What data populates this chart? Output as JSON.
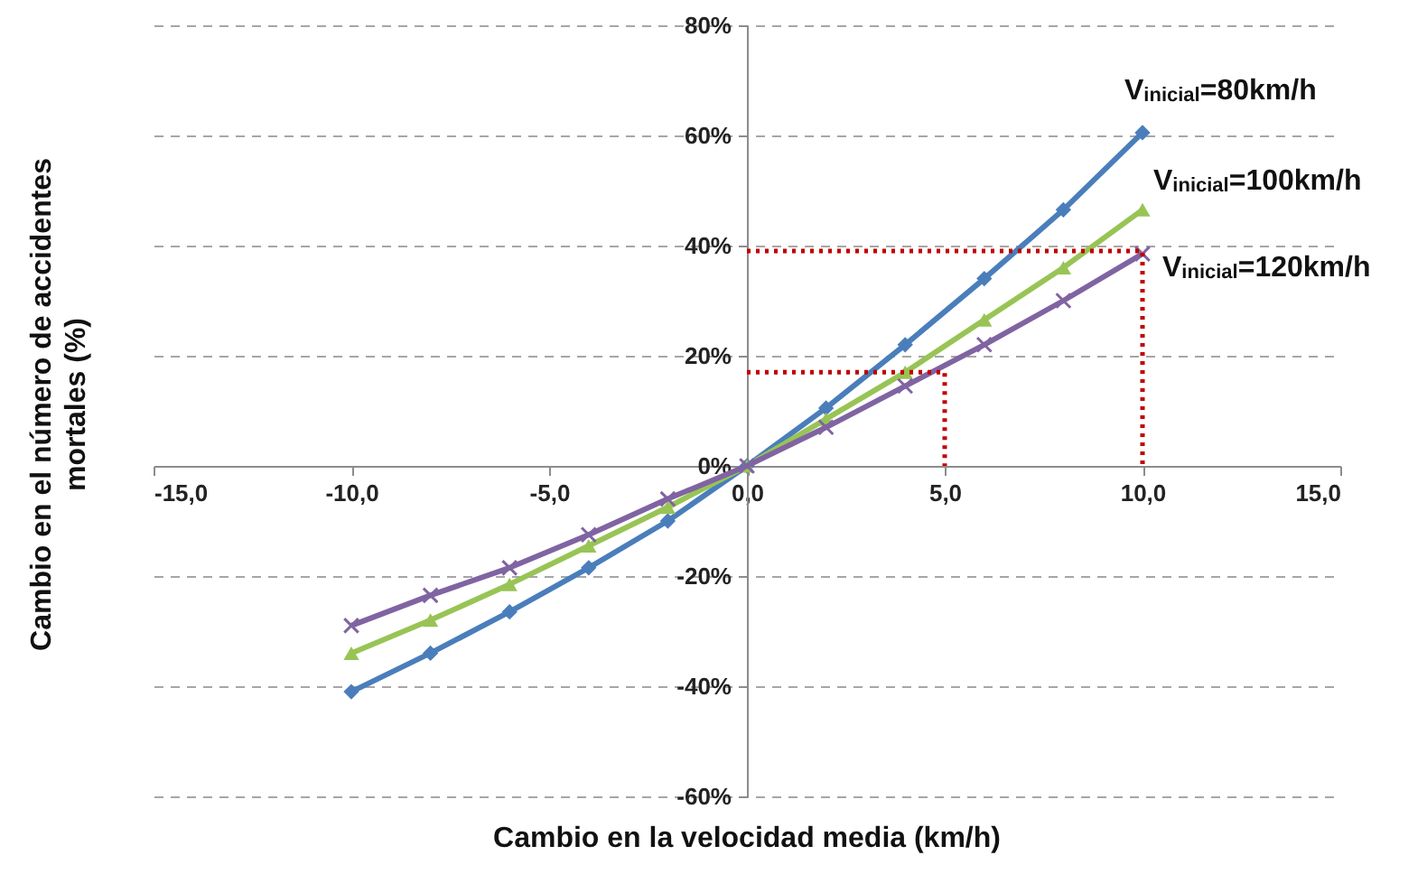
{
  "chart_data": {
    "type": "line",
    "xlabel": "Cambio en la velocidad media (km/h)",
    "ylabel": "Cambio en el número de accidentes mortales (%)",
    "xlim": [
      -15,
      15
    ],
    "xticks": [
      {
        "value": -15,
        "label": "-15,0"
      },
      {
        "value": -10,
        "label": "-10,0"
      },
      {
        "value": -5,
        "label": "-5,0"
      },
      {
        "value": 0,
        "label": "0,0"
      },
      {
        "value": 5,
        "label": "5,0"
      },
      {
        "value": 10,
        "label": "10,0"
      },
      {
        "value": 15,
        "label": "15,0"
      }
    ],
    "ylim": [
      -60,
      80
    ],
    "yticks": [
      {
        "value": -60,
        "label": "-60%"
      },
      {
        "value": -40,
        "label": "-40%"
      },
      {
        "value": -20,
        "label": "-20%"
      },
      {
        "value": 0,
        "label": "0%"
      },
      {
        "value": 20,
        "label": "20%"
      },
      {
        "value": 40,
        "label": "40%"
      },
      {
        "value": 60,
        "label": "60%"
      },
      {
        "value": 80,
        "label": "80%"
      }
    ],
    "grid": "y",
    "series": [
      {
        "name": "V$_{inicial}$=80km/h",
        "color": "#4a7ebb",
        "marker": "diamond",
        "x": [
          -10,
          -8,
          -6,
          -4,
          -2,
          0,
          2,
          4,
          6,
          8,
          10
        ],
        "values": [
          -41,
          -34,
          -26.5,
          -18.5,
          -10,
          0,
          10.5,
          22,
          34,
          46.5,
          60.5
        ]
      },
      {
        "name": "V$_{inicial}$=100km/h",
        "color": "#98c455",
        "marker": "triangle",
        "x": [
          -10,
          -8,
          -6,
          -4,
          -2,
          0,
          2,
          4,
          6,
          8,
          10
        ],
        "values": [
          -34,
          -28,
          -21.5,
          -14.5,
          -7.5,
          0,
          8.5,
          17,
          26.5,
          36,
          46.5
        ]
      },
      {
        "name": "V$_{inicial}$=120km/h",
        "color": "#8064a2",
        "marker": "cross",
        "x": [
          -10,
          -8,
          -6,
          -4,
          -2,
          0,
          2,
          4,
          6,
          8,
          10
        ],
        "values": [
          -29,
          -23.5,
          -18.5,
          -12.5,
          -6,
          0,
          7,
          14.5,
          22,
          30,
          38.5
        ]
      },
      {
        "color": "#c00000",
        "marker": "none",
        "line_style": "dotted",
        "x": [
          0,
          5,
          5
        ],
        "values": [
          17,
          17,
          0
        ]
      },
      {
        "color": "#c00000",
        "marker": "none",
        "line_style": "dotted",
        "x": [
          0,
          10,
          10
        ],
        "values": [
          39,
          39,
          0
        ]
      }
    ]
  }
}
